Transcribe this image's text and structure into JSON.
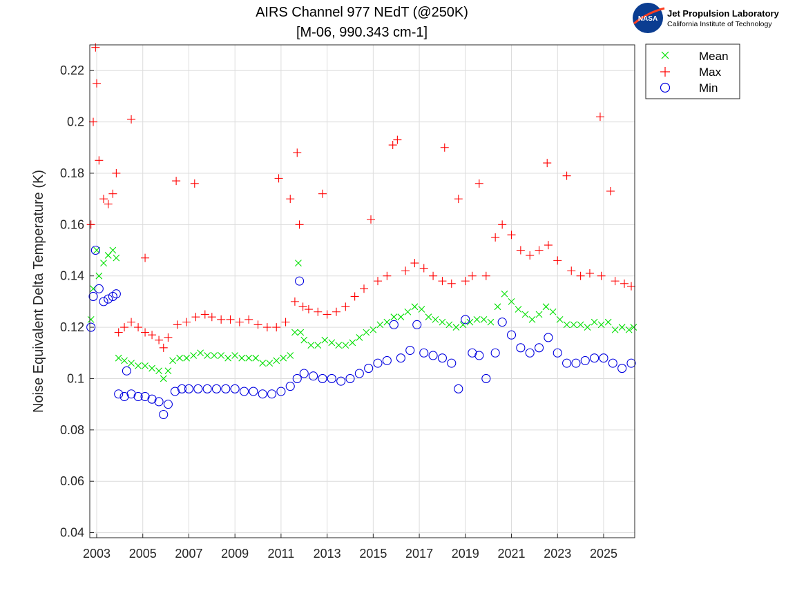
{
  "logo": {
    "name": "Jet Propulsion Laboratory",
    "subtitle": "California Institute of Technology",
    "badge": "NASA"
  },
  "chart_data": {
    "type": "scatter",
    "title": "AIRS Channel 977 NEdT (@250K)",
    "subtitle": "[M-06, 990.343 cm-1]",
    "xlabel": "",
    "ylabel": "Noise Equivalent Delta Temperature (K)",
    "xlim": [
      2002.7,
      2026.35
    ],
    "ylim": [
      0.038,
      0.23
    ],
    "x_ticks": [
      2003,
      2005,
      2007,
      2009,
      2011,
      2013,
      2015,
      2017,
      2019,
      2021,
      2023,
      2025
    ],
    "y_ticks": [
      0.04,
      0.06,
      0.08,
      0.1,
      0.12,
      0.14,
      0.16,
      0.18,
      0.2,
      0.22
    ],
    "y_tick_labels": [
      "0.04",
      "0.06",
      "0.08",
      "0.1",
      "0.12",
      "0.14",
      "0.16",
      "0.18",
      "0.2",
      "0.22"
    ],
    "grid": true,
    "legend_position": "outside-top-right",
    "series": [
      {
        "name": "Mean",
        "marker": "x",
        "color": "#00e000",
        "points": [
          [
            2002.75,
            0.123
          ],
          [
            2002.85,
            0.135
          ],
          [
            2003.0,
            0.15
          ],
          [
            2003.1,
            0.14
          ],
          [
            2003.3,
            0.145
          ],
          [
            2003.5,
            0.148
          ],
          [
            2003.7,
            0.15
          ],
          [
            2003.85,
            0.147
          ],
          [
            2003.95,
            0.108
          ],
          [
            2004.2,
            0.107
          ],
          [
            2004.5,
            0.106
          ],
          [
            2004.8,
            0.105
          ],
          [
            2005.1,
            0.105
          ],
          [
            2005.4,
            0.104
          ],
          [
            2005.7,
            0.103
          ],
          [
            2005.9,
            0.1
          ],
          [
            2006.1,
            0.103
          ],
          [
            2006.3,
            0.107
          ],
          [
            2006.6,
            0.108
          ],
          [
            2006.9,
            0.108
          ],
          [
            2007.2,
            0.109
          ],
          [
            2007.5,
            0.11
          ],
          [
            2007.8,
            0.109
          ],
          [
            2008.1,
            0.109
          ],
          [
            2008.4,
            0.109
          ],
          [
            2008.7,
            0.108
          ],
          [
            2009.0,
            0.109
          ],
          [
            2009.3,
            0.108
          ],
          [
            2009.6,
            0.108
          ],
          [
            2009.9,
            0.108
          ],
          [
            2010.2,
            0.106
          ],
          [
            2010.5,
            0.106
          ],
          [
            2010.8,
            0.107
          ],
          [
            2011.1,
            0.108
          ],
          [
            2011.4,
            0.109
          ],
          [
            2011.6,
            0.118
          ],
          [
            2011.75,
            0.145
          ],
          [
            2011.85,
            0.118
          ],
          [
            2012.0,
            0.115
          ],
          [
            2012.3,
            0.113
          ],
          [
            2012.6,
            0.113
          ],
          [
            2012.9,
            0.115
          ],
          [
            2013.2,
            0.114
          ],
          [
            2013.5,
            0.113
          ],
          [
            2013.8,
            0.113
          ],
          [
            2014.1,
            0.114
          ],
          [
            2014.4,
            0.116
          ],
          [
            2014.7,
            0.118
          ],
          [
            2015.0,
            0.119
          ],
          [
            2015.3,
            0.121
          ],
          [
            2015.6,
            0.122
          ],
          [
            2015.9,
            0.124
          ],
          [
            2016.2,
            0.124
          ],
          [
            2016.5,
            0.126
          ],
          [
            2016.8,
            0.128
          ],
          [
            2017.1,
            0.127
          ],
          [
            2017.4,
            0.124
          ],
          [
            2017.7,
            0.123
          ],
          [
            2018.0,
            0.122
          ],
          [
            2018.3,
            0.121
          ],
          [
            2018.6,
            0.12
          ],
          [
            2018.9,
            0.121
          ],
          [
            2019.2,
            0.122
          ],
          [
            2019.5,
            0.123
          ],
          [
            2019.8,
            0.123
          ],
          [
            2020.1,
            0.122
          ],
          [
            2020.4,
            0.128
          ],
          [
            2020.7,
            0.133
          ],
          [
            2021.0,
            0.13
          ],
          [
            2021.3,
            0.127
          ],
          [
            2021.6,
            0.125
          ],
          [
            2021.9,
            0.123
          ],
          [
            2022.2,
            0.125
          ],
          [
            2022.5,
            0.128
          ],
          [
            2022.8,
            0.126
          ],
          [
            2023.1,
            0.123
          ],
          [
            2023.4,
            0.121
          ],
          [
            2023.7,
            0.121
          ],
          [
            2024.0,
            0.121
          ],
          [
            2024.3,
            0.12
          ],
          [
            2024.6,
            0.122
          ],
          [
            2024.9,
            0.121
          ],
          [
            2025.2,
            0.122
          ],
          [
            2025.5,
            0.119
          ],
          [
            2025.8,
            0.12
          ],
          [
            2026.1,
            0.119
          ],
          [
            2026.3,
            0.12
          ]
        ]
      },
      {
        "name": "Max",
        "marker": "+",
        "color": "#ff0000",
        "points": [
          [
            2002.75,
            0.16
          ],
          [
            2002.85,
            0.2
          ],
          [
            2002.95,
            0.229
          ],
          [
            2003.0,
            0.215
          ],
          [
            2003.1,
            0.185
          ],
          [
            2003.3,
            0.17
          ],
          [
            2003.5,
            0.168
          ],
          [
            2003.7,
            0.172
          ],
          [
            2003.85,
            0.18
          ],
          [
            2003.95,
            0.118
          ],
          [
            2004.2,
            0.12
          ],
          [
            2004.5,
            0.201
          ],
          [
            2004.5,
            0.122
          ],
          [
            2004.8,
            0.12
          ],
          [
            2005.1,
            0.147
          ],
          [
            2005.1,
            0.118
          ],
          [
            2005.4,
            0.117
          ],
          [
            2005.7,
            0.115
          ],
          [
            2005.9,
            0.112
          ],
          [
            2006.1,
            0.116
          ],
          [
            2006.45,
            0.177
          ],
          [
            2006.5,
            0.121
          ],
          [
            2006.9,
            0.122
          ],
          [
            2007.25,
            0.176
          ],
          [
            2007.3,
            0.124
          ],
          [
            2007.7,
            0.125
          ],
          [
            2008.0,
            0.124
          ],
          [
            2008.4,
            0.123
          ],
          [
            2008.8,
            0.123
          ],
          [
            2009.2,
            0.122
          ],
          [
            2009.6,
            0.123
          ],
          [
            2010.0,
            0.121
          ],
          [
            2010.4,
            0.12
          ],
          [
            2010.8,
            0.12
          ],
          [
            2010.9,
            0.178
          ],
          [
            2011.2,
            0.122
          ],
          [
            2011.4,
            0.17
          ],
          [
            2011.6,
            0.13
          ],
          [
            2011.7,
            0.188
          ],
          [
            2011.8,
            0.16
          ],
          [
            2011.95,
            0.128
          ],
          [
            2012.2,
            0.127
          ],
          [
            2012.6,
            0.126
          ],
          [
            2012.8,
            0.172
          ],
          [
            2013.0,
            0.125
          ],
          [
            2013.4,
            0.126
          ],
          [
            2013.8,
            0.128
          ],
          [
            2014.2,
            0.132
          ],
          [
            2014.6,
            0.135
          ],
          [
            2014.9,
            0.162
          ],
          [
            2015.2,
            0.138
          ],
          [
            2015.6,
            0.14
          ],
          [
            2015.85,
            0.191
          ],
          [
            2016.05,
            0.193
          ],
          [
            2016.4,
            0.142
          ],
          [
            2016.8,
            0.145
          ],
          [
            2017.2,
            0.143
          ],
          [
            2017.6,
            0.14
          ],
          [
            2018.0,
            0.138
          ],
          [
            2018.1,
            0.19
          ],
          [
            2018.4,
            0.137
          ],
          [
            2018.7,
            0.17
          ],
          [
            2019.0,
            0.138
          ],
          [
            2019.3,
            0.14
          ],
          [
            2019.6,
            0.176
          ],
          [
            2019.9,
            0.14
          ],
          [
            2020.3,
            0.155
          ],
          [
            2020.6,
            0.16
          ],
          [
            2021.0,
            0.156
          ],
          [
            2021.4,
            0.15
          ],
          [
            2021.8,
            0.148
          ],
          [
            2022.2,
            0.15
          ],
          [
            2022.55,
            0.184
          ],
          [
            2022.6,
            0.152
          ],
          [
            2023.0,
            0.146
          ],
          [
            2023.4,
            0.179
          ],
          [
            2023.6,
            0.142
          ],
          [
            2024.0,
            0.14
          ],
          [
            2024.4,
            0.141
          ],
          [
            2024.85,
            0.202
          ],
          [
            2024.9,
            0.14
          ],
          [
            2025.3,
            0.173
          ],
          [
            2025.5,
            0.138
          ],
          [
            2025.9,
            0.137
          ],
          [
            2026.2,
            0.136
          ]
        ]
      },
      {
        "name": "Min",
        "marker": "o",
        "color": "#0000e0",
        "points": [
          [
            2002.75,
            0.12
          ],
          [
            2002.85,
            0.132
          ],
          [
            2002.95,
            0.15
          ],
          [
            2003.1,
            0.135
          ],
          [
            2003.3,
            0.13
          ],
          [
            2003.5,
            0.131
          ],
          [
            2003.7,
            0.132
          ],
          [
            2003.85,
            0.133
          ],
          [
            2003.95,
            0.094
          ],
          [
            2004.2,
            0.093
          ],
          [
            2004.3,
            0.103
          ],
          [
            2004.5,
            0.094
          ],
          [
            2004.8,
            0.093
          ],
          [
            2005.1,
            0.093
          ],
          [
            2005.4,
            0.092
          ],
          [
            2005.7,
            0.091
          ],
          [
            2005.9,
            0.086
          ],
          [
            2006.1,
            0.09
          ],
          [
            2006.4,
            0.095
          ],
          [
            2006.7,
            0.096
          ],
          [
            2007.0,
            0.096
          ],
          [
            2007.4,
            0.096
          ],
          [
            2007.8,
            0.096
          ],
          [
            2008.2,
            0.096
          ],
          [
            2008.6,
            0.096
          ],
          [
            2009.0,
            0.096
          ],
          [
            2009.4,
            0.095
          ],
          [
            2009.8,
            0.095
          ],
          [
            2010.2,
            0.094
          ],
          [
            2010.6,
            0.094
          ],
          [
            2011.0,
            0.095
          ],
          [
            2011.4,
            0.097
          ],
          [
            2011.7,
            0.1
          ],
          [
            2011.8,
            0.138
          ],
          [
            2012.0,
            0.102
          ],
          [
            2012.4,
            0.101
          ],
          [
            2012.8,
            0.1
          ],
          [
            2013.2,
            0.1
          ],
          [
            2013.6,
            0.099
          ],
          [
            2014.0,
            0.1
          ],
          [
            2014.4,
            0.102
          ],
          [
            2014.8,
            0.104
          ],
          [
            2015.2,
            0.106
          ],
          [
            2015.6,
            0.107
          ],
          [
            2015.9,
            0.121
          ],
          [
            2016.2,
            0.108
          ],
          [
            2016.6,
            0.111
          ],
          [
            2016.9,
            0.121
          ],
          [
            2017.2,
            0.11
          ],
          [
            2017.6,
            0.109
          ],
          [
            2018.0,
            0.108
          ],
          [
            2018.4,
            0.106
          ],
          [
            2018.7,
            0.096
          ],
          [
            2019.0,
            0.123
          ],
          [
            2019.3,
            0.11
          ],
          [
            2019.6,
            0.109
          ],
          [
            2019.9,
            0.1
          ],
          [
            2020.3,
            0.11
          ],
          [
            2020.6,
            0.122
          ],
          [
            2021.0,
            0.117
          ],
          [
            2021.4,
            0.112
          ],
          [
            2021.8,
            0.11
          ],
          [
            2022.2,
            0.112
          ],
          [
            2022.6,
            0.116
          ],
          [
            2023.0,
            0.11
          ],
          [
            2023.4,
            0.106
          ],
          [
            2023.8,
            0.106
          ],
          [
            2024.2,
            0.107
          ],
          [
            2024.6,
            0.108
          ],
          [
            2025.0,
            0.108
          ],
          [
            2025.4,
            0.106
          ],
          [
            2025.8,
            0.104
          ],
          [
            2026.2,
            0.106
          ]
        ]
      }
    ]
  }
}
